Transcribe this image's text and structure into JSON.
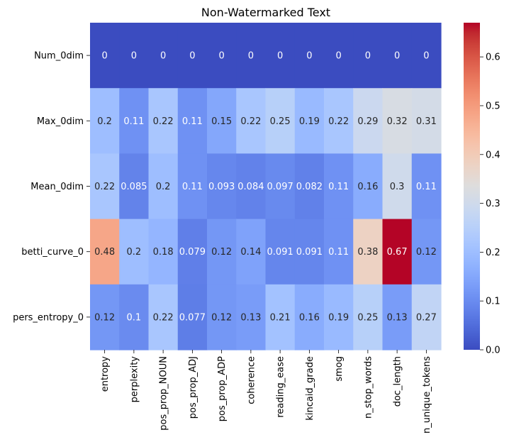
{
  "chart_data": {
    "type": "heatmap",
    "title": "Non-Watermarked Text",
    "xlabel": "",
    "ylabel": "",
    "colormap": "coolwarm",
    "vmin": 0.0,
    "vmax": 0.67,
    "columns": [
      "entropy",
      "perplexity",
      "pos_prop_NOUN",
      "pos_prop_ADJ",
      "pos_prop_ADP",
      "coherence",
      "reading_ease",
      "kincaid_grade",
      "smog",
      "n_stop_words",
      "doc_length",
      "n_unique_tokens"
    ],
    "rows": [
      "Num_0dim",
      "Max_0dim",
      "Mean_0dim",
      "betti_curve_0",
      "pers_entropy_0"
    ],
    "values": [
      [
        0,
        0,
        0,
        0,
        0,
        0,
        0,
        0,
        0,
        0,
        0,
        0
      ],
      [
        0.2,
        0.11,
        0.22,
        0.11,
        0.15,
        0.22,
        0.25,
        0.19,
        0.22,
        0.29,
        0.32,
        0.31
      ],
      [
        0.22,
        0.085,
        0.2,
        0.11,
        0.093,
        0.084,
        0.097,
        0.082,
        0.11,
        0.16,
        0.3,
        0.11
      ],
      [
        0.48,
        0.2,
        0.18,
        0.079,
        0.12,
        0.14,
        0.091,
        0.091,
        0.11,
        0.38,
        0.67,
        0.12
      ],
      [
        0.12,
        0.1,
        0.22,
        0.077,
        0.12,
        0.13,
        0.21,
        0.16,
        0.19,
        0.25,
        0.13,
        0.27
      ]
    ],
    "labels": [
      [
        "0",
        "0",
        "0",
        "0",
        "0",
        "0",
        "0",
        "0",
        "0",
        "0",
        "0",
        "0"
      ],
      [
        "0.2",
        "0.11",
        "0.22",
        "0.11",
        "0.15",
        "0.22",
        "0.25",
        "0.19",
        "0.22",
        "0.29",
        "0.32",
        "0.31"
      ],
      [
        "0.22",
        "0.085",
        "0.2",
        "0.11",
        "0.093",
        "0.084",
        "0.097",
        "0.082",
        "0.11",
        "0.16",
        "0.3",
        "0.11"
      ],
      [
        "0.48",
        "0.2",
        "0.18",
        "0.079",
        "0.12",
        "0.14",
        "0.091",
        "0.091",
        "0.11",
        "0.38",
        "0.67",
        "0.12"
      ],
      [
        "0.12",
        "0.1",
        "0.22",
        "0.077",
        "0.12",
        "0.13",
        "0.21",
        "0.16",
        "0.19",
        "0.25",
        "0.13",
        "0.27"
      ]
    ],
    "colorbar": {
      "ticks": [
        0.0,
        0.1,
        0.2,
        0.3,
        0.4,
        0.5,
        0.6
      ],
      "tick_labels": [
        "0.0",
        "0.1",
        "0.2",
        "0.3",
        "0.4",
        "0.5",
        "0.6"
      ]
    }
  }
}
